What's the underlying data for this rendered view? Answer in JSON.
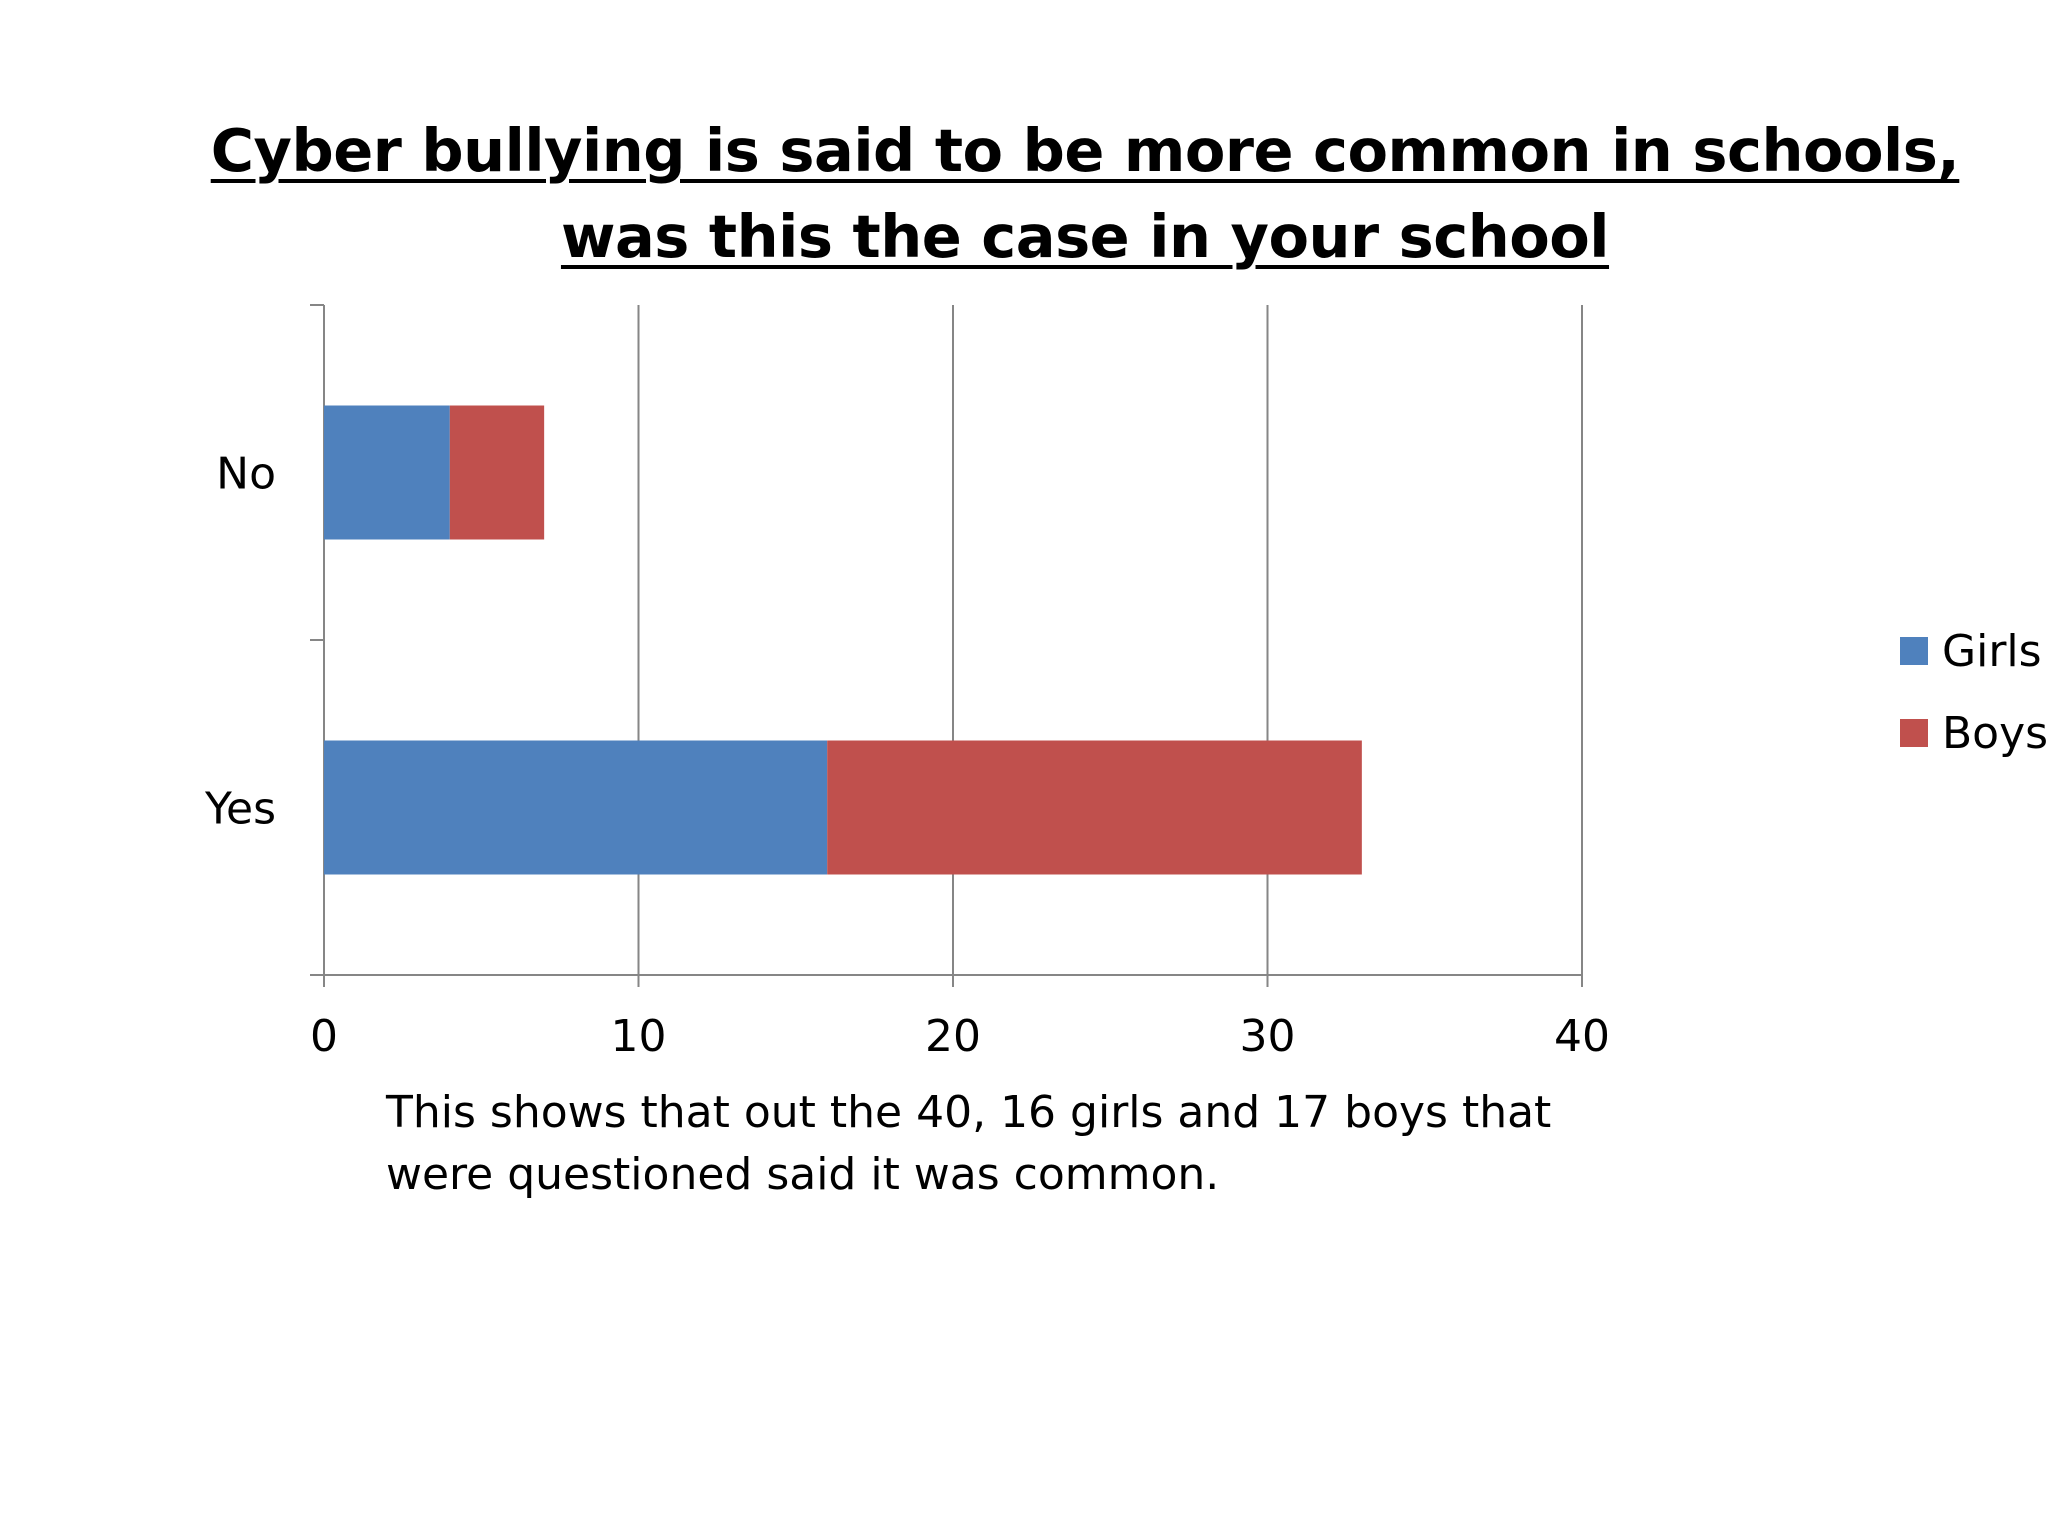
{
  "title": "Cyber bullying is said to be more common in schools, was this the case in your school",
  "note": "This shows that out the 40, 16 girls and 17 boys that were questioned said it was common.",
  "chart_data": {
    "type": "bar",
    "orientation": "horizontal",
    "stacked": true,
    "title": "Cyber bullying is said to be more common in schools, was this the case in your school",
    "categories": [
      "No",
      "Yes"
    ],
    "series": [
      {
        "name": "Girls",
        "color": "#4f81bd",
        "values": [
          4,
          16
        ]
      },
      {
        "name": "Boys",
        "color": "#c0504d",
        "values": [
          3,
          17
        ]
      }
    ],
    "xlim": [
      0,
      40
    ],
    "x_ticks": [
      "0",
      "10",
      "20",
      "30",
      "40"
    ],
    "grid": "vertical",
    "legend_position": "right"
  }
}
